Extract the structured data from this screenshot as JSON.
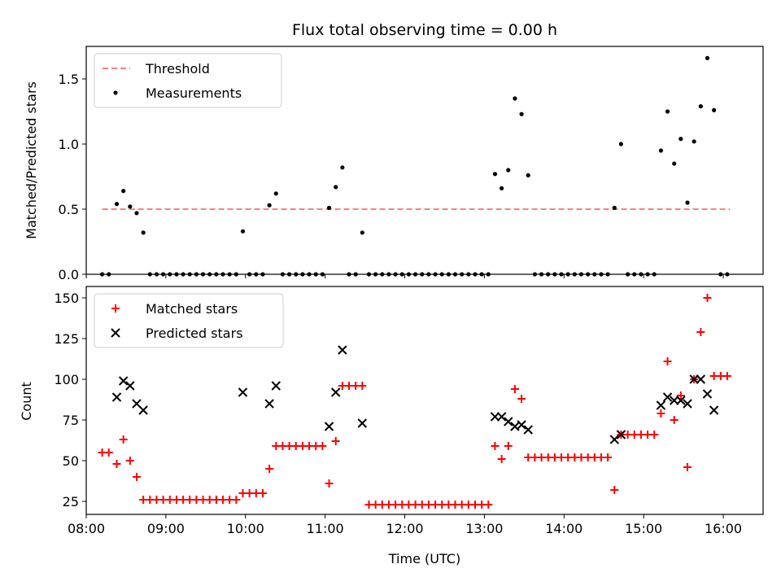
{
  "chart_data": [
    {
      "type": "scatter",
      "title": "Flux total observing time = 0.00 h",
      "xlabel": "",
      "ylabel": "Matched/Predicted stars",
      "xlim": [
        "08:00",
        "16:30"
      ],
      "ylim": [
        0,
        1.75
      ],
      "yticks": [
        0.0,
        0.5,
        1.0,
        1.5
      ],
      "ytick_labels": [
        "0.0",
        "0.5",
        "1.0",
        "1.5"
      ],
      "legend_position": "top-left",
      "series": [
        {
          "name": "Threshold",
          "kind": "line",
          "style": "dashed",
          "color": "#ff7f7f",
          "points": [
            [
              "08:12",
              0.5
            ],
            [
              "16:05",
              0.5
            ]
          ]
        },
        {
          "name": "Measurements",
          "kind": "scatter",
          "marker": "dot",
          "color": "#000000",
          "points": [
            [
              "08:12",
              0
            ],
            [
              "08:17",
              0
            ],
            [
              "08:23",
              0.54
            ],
            [
              "08:28",
              0.64
            ],
            [
              "08:33",
              0.52
            ],
            [
              "08:38",
              0.47
            ],
            [
              "08:43",
              0.32
            ],
            [
              "08:48",
              0
            ],
            [
              "08:53",
              0
            ],
            [
              "08:58",
              0
            ],
            [
              "09:03",
              0
            ],
            [
              "09:08",
              0
            ],
            [
              "09:13",
              0
            ],
            [
              "09:18",
              0
            ],
            [
              "09:23",
              0
            ],
            [
              "09:28",
              0
            ],
            [
              "09:33",
              0
            ],
            [
              "09:38",
              0
            ],
            [
              "09:43",
              0
            ],
            [
              "09:48",
              0
            ],
            [
              "09:53",
              0
            ],
            [
              "09:58",
              0.33
            ],
            [
              "10:03",
              0
            ],
            [
              "10:08",
              0
            ],
            [
              "10:13",
              0
            ],
            [
              "10:18",
              0.53
            ],
            [
              "10:23",
              0.62
            ],
            [
              "10:28",
              0
            ],
            [
              "10:33",
              0
            ],
            [
              "10:38",
              0
            ],
            [
              "10:43",
              0
            ],
            [
              "10:48",
              0
            ],
            [
              "10:53",
              0
            ],
            [
              "10:58",
              0
            ],
            [
              "11:03",
              0.51
            ],
            [
              "11:08",
              0.67
            ],
            [
              "11:13",
              0.82
            ],
            [
              "11:18",
              0
            ],
            [
              "11:23",
              0
            ],
            [
              "11:28",
              0.32
            ],
            [
              "11:33",
              0
            ],
            [
              "11:38",
              0
            ],
            [
              "11:43",
              0
            ],
            [
              "11:48",
              0
            ],
            [
              "11:53",
              0
            ],
            [
              "11:58",
              0
            ],
            [
              "12:03",
              0
            ],
            [
              "12:08",
              0
            ],
            [
              "12:13",
              0
            ],
            [
              "12:18",
              0
            ],
            [
              "12:23",
              0
            ],
            [
              "12:28",
              0
            ],
            [
              "12:33",
              0
            ],
            [
              "12:38",
              0
            ],
            [
              "12:43",
              0
            ],
            [
              "12:48",
              0
            ],
            [
              "12:53",
              0
            ],
            [
              "12:58",
              0
            ],
            [
              "13:03",
              0
            ],
            [
              "13:08",
              0.77
            ],
            [
              "13:13",
              0.66
            ],
            [
              "13:18",
              0.8
            ],
            [
              "13:23",
              1.35
            ],
            [
              "13:28",
              1.23
            ],
            [
              "13:33",
              0.76
            ],
            [
              "13:38",
              0
            ],
            [
              "13:43",
              0
            ],
            [
              "13:48",
              0
            ],
            [
              "13:53",
              0
            ],
            [
              "13:58",
              0
            ],
            [
              "14:03",
              0
            ],
            [
              "14:08",
              0
            ],
            [
              "14:13",
              0
            ],
            [
              "14:18",
              0
            ],
            [
              "14:23",
              0
            ],
            [
              "14:28",
              0
            ],
            [
              "14:33",
              0
            ],
            [
              "14:38",
              0.51
            ],
            [
              "14:43",
              1.0
            ],
            [
              "14:48",
              0
            ],
            [
              "14:53",
              0
            ],
            [
              "14:58",
              0
            ],
            [
              "15:03",
              0
            ],
            [
              "15:08",
              0
            ],
            [
              "15:13",
              0.95
            ],
            [
              "15:18",
              1.25
            ],
            [
              "15:23",
              0.85
            ],
            [
              "15:28",
              1.04
            ],
            [
              "15:33",
              0.55
            ],
            [
              "15:38",
              1.02
            ],
            [
              "15:43",
              1.29
            ],
            [
              "15:48",
              1.66
            ],
            [
              "15:53",
              1.26
            ],
            [
              "15:58",
              0
            ],
            [
              "16:03",
              0
            ]
          ]
        }
      ]
    },
    {
      "type": "scatter",
      "title": "",
      "xlabel": "Time (UTC)",
      "ylabel": "Count",
      "xlim": [
        "08:00",
        "16:30"
      ],
      "ylim": [
        17,
        157
      ],
      "xticks": [
        "08:00",
        "09:00",
        "10:00",
        "11:00",
        "12:00",
        "13:00",
        "14:00",
        "15:00",
        "16:00"
      ],
      "xtick_labels": [
        "08:00",
        "09:00",
        "10:00",
        "11:00",
        "12:00",
        "13:00",
        "14:00",
        "15:00",
        "16:00"
      ],
      "yticks": [
        25,
        50,
        75,
        100,
        125,
        150
      ],
      "ytick_labels": [
        "25",
        "50",
        "75",
        "100",
        "125",
        "150"
      ],
      "legend_position": "top-left",
      "series": [
        {
          "name": "Matched stars",
          "kind": "scatter",
          "marker": "plus",
          "color": "#ff0000",
          "points": [
            [
              "08:12",
              55
            ],
            [
              "08:17",
              55
            ],
            [
              "08:23",
              48
            ],
            [
              "08:28",
              63
            ],
            [
              "08:33",
              50
            ],
            [
              "08:38",
              40
            ],
            [
              "08:43",
              26
            ],
            [
              "08:48",
              26
            ],
            [
              "08:53",
              26
            ],
            [
              "08:58",
              26
            ],
            [
              "09:03",
              26
            ],
            [
              "09:08",
              26
            ],
            [
              "09:13",
              26
            ],
            [
              "09:18",
              26
            ],
            [
              "09:23",
              26
            ],
            [
              "09:28",
              26
            ],
            [
              "09:33",
              26
            ],
            [
              "09:38",
              26
            ],
            [
              "09:43",
              26
            ],
            [
              "09:48",
              26
            ],
            [
              "09:53",
              26
            ],
            [
              "09:58",
              30
            ],
            [
              "10:03",
              30
            ],
            [
              "10:08",
              30
            ],
            [
              "10:13",
              30
            ],
            [
              "10:18",
              45
            ],
            [
              "10:23",
              59
            ],
            [
              "10:28",
              59
            ],
            [
              "10:33",
              59
            ],
            [
              "10:38",
              59
            ],
            [
              "10:43",
              59
            ],
            [
              "10:48",
              59
            ],
            [
              "10:53",
              59
            ],
            [
              "10:58",
              59
            ],
            [
              "11:03",
              36
            ],
            [
              "11:08",
              62
            ],
            [
              "11:13",
              96
            ],
            [
              "11:18",
              96
            ],
            [
              "11:23",
              96
            ],
            [
              "11:28",
              96
            ],
            [
              "11:33",
              23
            ],
            [
              "11:38",
              23
            ],
            [
              "11:43",
              23
            ],
            [
              "11:48",
              23
            ],
            [
              "11:53",
              23
            ],
            [
              "11:58",
              23
            ],
            [
              "12:03",
              23
            ],
            [
              "12:08",
              23
            ],
            [
              "12:13",
              23
            ],
            [
              "12:18",
              23
            ],
            [
              "12:23",
              23
            ],
            [
              "12:28",
              23
            ],
            [
              "12:33",
              23
            ],
            [
              "12:38",
              23
            ],
            [
              "12:43",
              23
            ],
            [
              "12:48",
              23
            ],
            [
              "12:53",
              23
            ],
            [
              "12:58",
              23
            ],
            [
              "13:03",
              23
            ],
            [
              "13:08",
              59
            ],
            [
              "13:13",
              51
            ],
            [
              "13:18",
              59
            ],
            [
              "13:23",
              94
            ],
            [
              "13:28",
              88
            ],
            [
              "13:33",
              52
            ],
            [
              "13:38",
              52
            ],
            [
              "13:43",
              52
            ],
            [
              "13:48",
              52
            ],
            [
              "13:53",
              52
            ],
            [
              "13:58",
              52
            ],
            [
              "14:03",
              52
            ],
            [
              "14:08",
              52
            ],
            [
              "14:13",
              52
            ],
            [
              "14:18",
              52
            ],
            [
              "14:23",
              52
            ],
            [
              "14:28",
              52
            ],
            [
              "14:33",
              52
            ],
            [
              "14:38",
              32
            ],
            [
              "14:43",
              66
            ],
            [
              "14:48",
              66
            ],
            [
              "14:53",
              66
            ],
            [
              "14:58",
              66
            ],
            [
              "15:03",
              66
            ],
            [
              "15:08",
              66
            ],
            [
              "15:13",
              79
            ],
            [
              "15:18",
              111
            ],
            [
              "15:23",
              75
            ],
            [
              "15:28",
              90
            ],
            [
              "15:33",
              46
            ],
            [
              "15:38",
              100
            ],
            [
              "15:43",
              129
            ],
            [
              "15:48",
              150
            ],
            [
              "15:53",
              102
            ],
            [
              "15:58",
              102
            ],
            [
              "16:03",
              102
            ]
          ]
        },
        {
          "name": "Predicted stars",
          "kind": "scatter",
          "marker": "x",
          "color": "#000000",
          "points": [
            [
              "08:23",
              89
            ],
            [
              "08:28",
              99
            ],
            [
              "08:33",
              96
            ],
            [
              "08:38",
              85
            ],
            [
              "08:43",
              81
            ],
            [
              "09:58",
              92
            ],
            [
              "10:18",
              85
            ],
            [
              "10:23",
              96
            ],
            [
              "11:03",
              71
            ],
            [
              "11:08",
              92
            ],
            [
              "11:13",
              118
            ],
            [
              "11:28",
              73
            ],
            [
              "13:08",
              77
            ],
            [
              "13:13",
              77
            ],
            [
              "13:18",
              74
            ],
            [
              "13:23",
              71
            ],
            [
              "13:28",
              72
            ],
            [
              "13:33",
              69
            ],
            [
              "14:38",
              63
            ],
            [
              "14:43",
              66
            ],
            [
              "15:13",
              84
            ],
            [
              "15:18",
              89
            ],
            [
              "15:23",
              87
            ],
            [
              "15:28",
              87
            ],
            [
              "15:33",
              85
            ],
            [
              "15:38",
              100
            ],
            [
              "15:43",
              100
            ],
            [
              "15:48",
              91
            ],
            [
              "15:53",
              81
            ]
          ]
        }
      ]
    }
  ]
}
